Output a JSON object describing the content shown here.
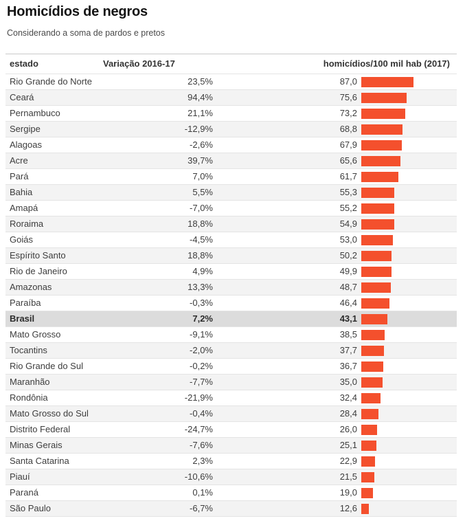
{
  "header": {
    "title": "Homicídios de negros",
    "subtitle": "Considerando a soma de pardos e pretos"
  },
  "table": {
    "columns": [
      "estado",
      "Variação 2016-17",
      "homicídios/100 mil hab (2017)"
    ],
    "rows": [
      {
        "estado": "Rio Grande do Norte",
        "variacao": "23,5%",
        "taxa": "87,0",
        "valor": 87.0,
        "highlight": false
      },
      {
        "estado": "Ceará",
        "variacao": "94,4%",
        "taxa": "75,6",
        "valor": 75.6,
        "highlight": false
      },
      {
        "estado": "Pernambuco",
        "variacao": "21,1%",
        "taxa": "73,2",
        "valor": 73.2,
        "highlight": false
      },
      {
        "estado": "Sergipe",
        "variacao": "-12,9%",
        "taxa": "68,8",
        "valor": 68.8,
        "highlight": false
      },
      {
        "estado": "Alagoas",
        "variacao": "-2,6%",
        "taxa": "67,9",
        "valor": 67.9,
        "highlight": false
      },
      {
        "estado": "Acre",
        "variacao": "39,7%",
        "taxa": "65,6",
        "valor": 65.6,
        "highlight": false
      },
      {
        "estado": "Pará",
        "variacao": "7,0%",
        "taxa": "61,7",
        "valor": 61.7,
        "highlight": false
      },
      {
        "estado": "Bahia",
        "variacao": "5,5%",
        "taxa": "55,3",
        "valor": 55.3,
        "highlight": false
      },
      {
        "estado": "Amapá",
        "variacao": "-7,0%",
        "taxa": "55,2",
        "valor": 55.2,
        "highlight": false
      },
      {
        "estado": "Roraima",
        "variacao": "18,8%",
        "taxa": "54,9",
        "valor": 54.9,
        "highlight": false
      },
      {
        "estado": "Goiás",
        "variacao": "-4,5%",
        "taxa": "53,0",
        "valor": 53.0,
        "highlight": false
      },
      {
        "estado": "Espírito Santo",
        "variacao": "18,8%",
        "taxa": "50,2",
        "valor": 50.2,
        "highlight": false
      },
      {
        "estado": "Rio de Janeiro",
        "variacao": "4,9%",
        "taxa": "49,9",
        "valor": 49.9,
        "highlight": false
      },
      {
        "estado": "Amazonas",
        "variacao": "13,3%",
        "taxa": "48,7",
        "valor": 48.7,
        "highlight": false
      },
      {
        "estado": "Paraíba",
        "variacao": "-0,3%",
        "taxa": "46,4",
        "valor": 46.4,
        "highlight": false
      },
      {
        "estado": "Brasil",
        "variacao": "7,2%",
        "taxa": "43,1",
        "valor": 43.1,
        "highlight": true
      },
      {
        "estado": "Mato Grosso",
        "variacao": "-9,1%",
        "taxa": "38,5",
        "valor": 38.5,
        "highlight": false
      },
      {
        "estado": "Tocantins",
        "variacao": "-2,0%",
        "taxa": "37,7",
        "valor": 37.7,
        "highlight": false
      },
      {
        "estado": "Rio Grande do Sul",
        "variacao": "-0,2%",
        "taxa": "36,7",
        "valor": 36.7,
        "highlight": false
      },
      {
        "estado": "Maranhão",
        "variacao": "-7,7%",
        "taxa": "35,0",
        "valor": 35.0,
        "highlight": false
      },
      {
        "estado": "Rondônia",
        "variacao": "-21,9%",
        "taxa": "32,4",
        "valor": 32.4,
        "highlight": false
      },
      {
        "estado": "Mato Grosso do Sul",
        "variacao": "-0,4%",
        "taxa": "28,4",
        "valor": 28.4,
        "highlight": false
      },
      {
        "estado": "Distrito Federal",
        "variacao": "-24,7%",
        "taxa": "26,0",
        "valor": 26.0,
        "highlight": false
      },
      {
        "estado": "Minas Gerais",
        "variacao": "-7,6%",
        "taxa": "25,1",
        "valor": 25.1,
        "highlight": false
      },
      {
        "estado": "Santa Catarina",
        "variacao": "2,3%",
        "taxa": "22,9",
        "valor": 22.9,
        "highlight": false
      },
      {
        "estado": "Piauí",
        "variacao": "-10,6%",
        "taxa": "21,5",
        "valor": 21.5,
        "highlight": false
      },
      {
        "estado": "Paraná",
        "variacao": "0,1%",
        "taxa": "19,0",
        "valor": 19.0,
        "highlight": false
      },
      {
        "estado": "São Paulo",
        "variacao": "-6,7%",
        "taxa": "12,6",
        "valor": 12.6,
        "highlight": false
      }
    ]
  },
  "colors": {
    "bar": "#f4502d",
    "row_stripe": "#f3f3f3",
    "highlight_row": "#dcdcdc"
  },
  "chart_data": {
    "type": "bar",
    "title": "Homicídios de negros",
    "subtitle": "Considerando a soma de pardos e pretos",
    "orientation": "horizontal",
    "categories": [
      "Rio Grande do Norte",
      "Ceará",
      "Pernambuco",
      "Sergipe",
      "Alagoas",
      "Acre",
      "Pará",
      "Bahia",
      "Amapá",
      "Roraima",
      "Goiás",
      "Espírito Santo",
      "Rio de Janeiro",
      "Amazonas",
      "Paraíba",
      "Brasil",
      "Mato Grosso",
      "Tocantins",
      "Rio Grande do Sul",
      "Maranhão",
      "Rondônia",
      "Mato Grosso do Sul",
      "Distrito Federal",
      "Minas Gerais",
      "Santa Catarina",
      "Piauí",
      "Paraná",
      "São Paulo"
    ],
    "series": [
      {
        "name": "Variação 2016-17 (%)",
        "values": [
          23.5,
          94.4,
          21.1,
          -12.9,
          -2.6,
          39.7,
          7.0,
          5.5,
          -7.0,
          18.8,
          -4.5,
          18.8,
          4.9,
          13.3,
          -0.3,
          7.2,
          -9.1,
          -2.0,
          -0.2,
          -7.7,
          -21.9,
          -0.4,
          -24.7,
          -7.6,
          2.3,
          -10.6,
          0.1,
          -6.7
        ]
      },
      {
        "name": "homicídios/100 mil hab (2017)",
        "values": [
          87.0,
          75.6,
          73.2,
          68.8,
          67.9,
          65.6,
          61.7,
          55.3,
          55.2,
          54.9,
          53.0,
          50.2,
          49.9,
          48.7,
          46.4,
          43.1,
          38.5,
          37.7,
          36.7,
          35.0,
          32.4,
          28.4,
          26.0,
          25.1,
          22.9,
          21.5,
          19.0,
          12.6
        ]
      }
    ],
    "bar_series_plotted": "homicídios/100 mil hab (2017)",
    "xlim": [
      0,
      87
    ],
    "bar_color": "#f4502d",
    "highlight_category": "Brasil",
    "grid": false,
    "legend": false
  }
}
